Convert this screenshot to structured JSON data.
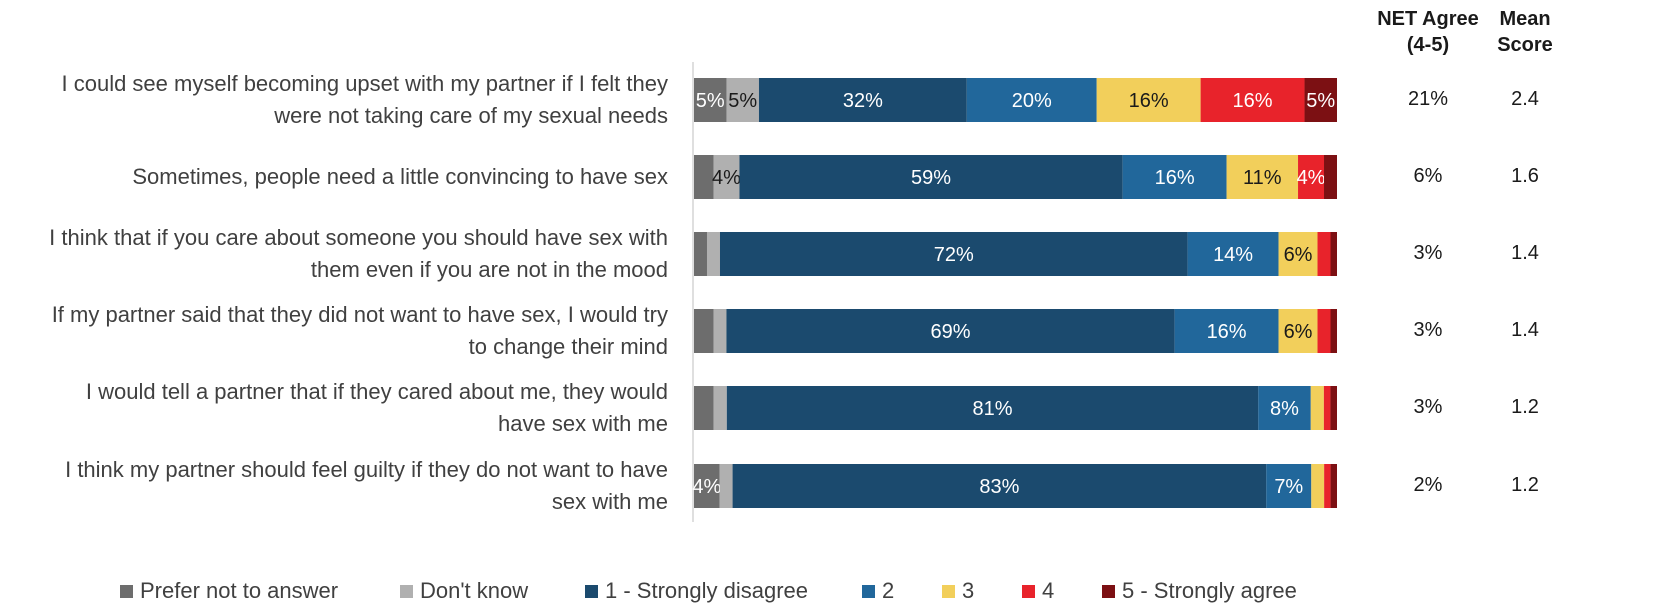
{
  "columns": {
    "net_agree": "NET Agree\n(4-5)",
    "mean_score": "Mean\nScore"
  },
  "series_colors": [
    "#6d6d6d",
    "#b0b0b0",
    "#1b4a6e",
    "#21679b",
    "#f2cf5b",
    "#e8232b",
    "#7c1013"
  ],
  "chart_data": {
    "type": "bar",
    "orientation": "horizontal",
    "stacked": true,
    "xlim": [
      0,
      100
    ],
    "categories": [
      "I could see myself becoming upset with my partner if I felt they\nwere not taking care of my sexual needs",
      "Sometimes, people need a little convincing to have sex",
      "I think that if you care about someone you should have sex with\nthem even if you are not in the mood",
      "If my partner said that they did not want to have sex, I would try\nto change their mind",
      "I would tell a partner that if they cared about me, they would\nhave sex with me",
      "I think my partner should feel guilty if they do not want to have\nsex with me"
    ],
    "series": [
      {
        "name": "Prefer not to answer",
        "values": [
          5,
          3,
          2,
          3,
          3,
          4
        ]
      },
      {
        "name": "Don't know",
        "values": [
          5,
          4,
          2,
          2,
          2,
          2
        ]
      },
      {
        "name": "1 - Strongly disagree",
        "values": [
          32,
          59,
          72,
          69,
          81,
          83
        ]
      },
      {
        "name": "2",
        "values": [
          20,
          16,
          14,
          16,
          8,
          7
        ]
      },
      {
        "name": "3",
        "values": [
          16,
          11,
          6,
          6,
          2,
          2
        ]
      },
      {
        "name": "4",
        "values": [
          16,
          4,
          2,
          2,
          1,
          1
        ]
      },
      {
        "name": "5 - Strongly agree",
        "values": [
          5,
          2,
          1,
          1,
          1,
          1
        ]
      }
    ],
    "data_labels": [
      [
        "5%",
        "5%",
        "32%",
        "20%",
        "16%",
        "16%",
        "5%"
      ],
      [
        "",
        "4%",
        "59%",
        "16%",
        "11%",
        "4%",
        ""
      ],
      [
        "",
        "",
        "72%",
        "14%",
        "6%",
        "",
        ""
      ],
      [
        "",
        "",
        "69%",
        "16%",
        "6%",
        "",
        ""
      ],
      [
        "",
        "",
        "81%",
        "8%",
        "",
        "",
        ""
      ],
      [
        "4%",
        "",
        "83%",
        "7%",
        "",
        "",
        ""
      ]
    ],
    "net_agree": [
      "21%",
      "6%",
      "3%",
      "3%",
      "3%",
      "2%"
    ],
    "mean_score": [
      "2.4",
      "1.6",
      "1.4",
      "1.4",
      "1.2",
      "1.2"
    ],
    "legend_position": "bottom",
    "grid": false
  }
}
